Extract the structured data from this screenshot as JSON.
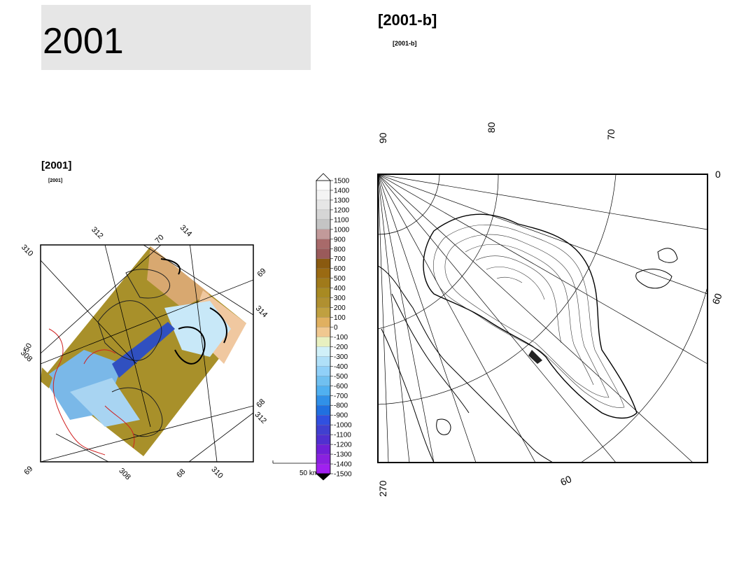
{
  "slide_title": "2001",
  "right_panel": {
    "label": "[2001-b]",
    "sublabel": "[2001-b]",
    "map": {
      "lon_labels": [
        "90",
        "80",
        "70",
        "0",
        "60",
        "270",
        "60"
      ]
    }
  },
  "left_panel": {
    "label": "[2001]",
    "sublabel": "[2001]",
    "map": {
      "grid_labels": [
        "310",
        "312",
        "70",
        "314",
        "69",
        "314",
        "50",
        "308",
        "68",
        "312",
        "69",
        "308",
        "68",
        "310"
      ],
      "scale_bar_label": "50 km"
    },
    "colorbar": {
      "ticks": [
        "1500",
        "1400",
        "1300",
        "1200",
        "1100",
        "1000",
        "900",
        "800",
        "700",
        "600",
        "500",
        "400",
        "300",
        "200",
        "100",
        "0",
        "-100",
        "-200",
        "-300",
        "-400",
        "-500",
        "-600",
        "-700",
        "-800",
        "-900",
        "-1000",
        "-1100",
        "-1200",
        "-1300",
        "-1400",
        "-1500"
      ],
      "colors": [
        "#ffffff",
        "#f4f4f4",
        "#e6e6e6",
        "#d6d6d6",
        "#c4c4c4",
        "#c29a9a",
        "#a86a6a",
        "#9a5a5a",
        "#8a5a10",
        "#9a6a12",
        "#a07a1a",
        "#a88a22",
        "#b09030",
        "#c0a040",
        "#e0b060",
        "#f0c890",
        "#e8f0c0",
        "#d0f0f8",
        "#b0e0f8",
        "#90d0f8",
        "#70c0f0",
        "#50b0f0",
        "#3090e8",
        "#2070e0",
        "#3050e0",
        "#4040d0",
        "#5030d0",
        "#7020d8",
        "#8a20e0",
        "#a020f0"
      ]
    }
  }
}
